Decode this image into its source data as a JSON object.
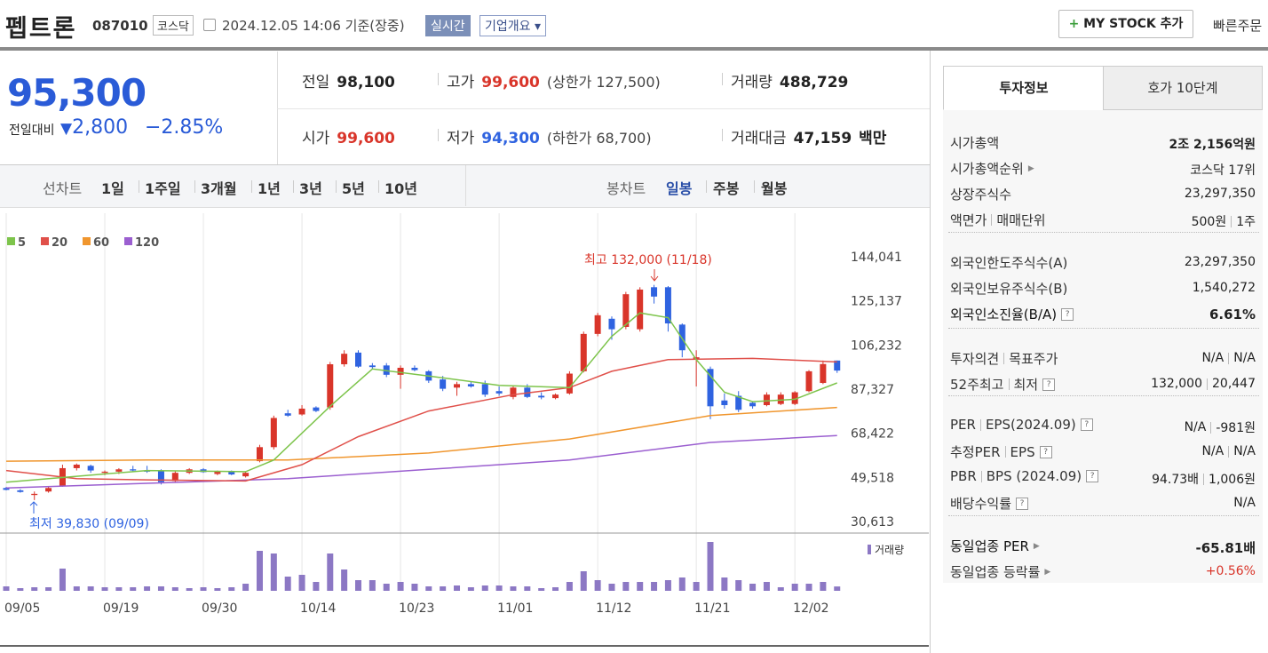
{
  "header": {
    "name": "펩트론",
    "code": "087010",
    "market": "코스닥",
    "datetime": "2024.12.05 14:06 기준(장중)",
    "realtime": "실시간",
    "company": "기업개요",
    "mystock": "MY STOCK 추가",
    "quick_order": "빠른주문"
  },
  "quote": {
    "price": "95,300",
    "change_label": "전일대비",
    "change": "2,800",
    "change_pct": "−2.85%",
    "rows": [
      [
        {
          "label": "전일",
          "value": "98,100"
        },
        {
          "label": "고가",
          "value": "99,600",
          "extra": "(상한가 127,500)"
        },
        {
          "label": "거래량",
          "value": "488,729"
        }
      ],
      [
        {
          "label": "시가",
          "value": "99,600"
        },
        {
          "label": "저가",
          "value": "94,300",
          "extra": "(하한가 68,700)"
        },
        {
          "label": "거래대금",
          "value": "47,159",
          "unit": "백만"
        }
      ]
    ]
  },
  "period_tabs": {
    "line_label": "선차트",
    "line": [
      "1일",
      "1주일",
      "3개월",
      "1년",
      "3년",
      "5년",
      "10년"
    ],
    "candle_label": "봉차트",
    "candle": [
      "일봉",
      "주봉",
      "월봉"
    ]
  },
  "invest": {
    "tabs": [
      "투자정보",
      "호가 10단계"
    ],
    "groups": [
      [
        {
          "label": [
            "시가총액"
          ],
          "value": [
            "2조 2,156억원"
          ]
        },
        {
          "label": [
            "시가총액순위"
          ],
          "arrow": true,
          "value": [
            "코스닥 17위"
          ]
        },
        {
          "label": [
            "상장주식수"
          ],
          "value": [
            "23,297,350"
          ]
        },
        {
          "label": [
            "액면가",
            "매매단위"
          ],
          "value": [
            "500원",
            "1주"
          ]
        }
      ],
      [
        {
          "label": [
            "외국인한도주식수(A)"
          ],
          "value": [
            "23,297,350"
          ]
        },
        {
          "label": [
            "외국인보유주식수(B)"
          ],
          "value": [
            "1,540,272"
          ]
        },
        {
          "label": [
            "외국인소진율(B/A)"
          ],
          "help": true,
          "value": [
            "6.61%"
          ],
          "strong": true
        }
      ],
      [
        {
          "label": [
            "투자의견",
            "목표주가"
          ],
          "value": [
            "N/A",
            "N/A"
          ]
        },
        {
          "label": [
            "52주최고",
            "최저"
          ],
          "help": true,
          "value": [
            "132,000",
            "20,447"
          ]
        }
      ],
      [
        {
          "label": [
            "PER",
            "EPS(2024.09)"
          ],
          "help": true,
          "value": [
            "N/A",
            "-981원"
          ]
        },
        {
          "label": [
            "추정PER",
            "EPS"
          ],
          "help": true,
          "value": [
            "N/A",
            "N/A"
          ]
        },
        {
          "label": [
            "PBR",
            "BPS (2024.09)"
          ],
          "help": true,
          "value": [
            "94.73배",
            "1,006원"
          ]
        },
        {
          "label": [
            "배당수익률"
          ],
          "help": true,
          "value": [
            "N/A"
          ]
        }
      ],
      [
        {
          "label": [
            "동일업종 PER"
          ],
          "arrow": true,
          "value": [
            "-65.81배"
          ],
          "strong": true
        },
        {
          "label": [
            "동일업종 등락률"
          ],
          "arrow": true,
          "value": [
            "+0.56%"
          ],
          "rise": true
        }
      ]
    ]
  },
  "chart_data": {
    "type": "candlestick",
    "categories": [
      "09/05",
      null,
      null,
      null,
      null,
      null,
      null,
      "09/19",
      null,
      null,
      null,
      null,
      null,
      null,
      "09/30",
      null,
      null,
      null,
      null,
      null,
      null,
      "10/14",
      null,
      null,
      null,
      null,
      null,
      null,
      "10/23",
      null,
      null,
      null,
      null,
      null,
      null,
      "11/01",
      null,
      null,
      null,
      null,
      null,
      null,
      "11/12",
      null,
      null,
      null,
      null,
      null,
      null,
      "11/21",
      null,
      null,
      null,
      null,
      null,
      null,
      "12/02",
      null,
      null,
      null
    ],
    "open": [
      45000,
      44000,
      42000,
      43500,
      46000,
      53500,
      54500,
      51500,
      52000,
      53000,
      52500,
      52500,
      48000,
      51500,
      53000,
      51000,
      52000,
      50000,
      56500,
      62500,
      77000,
      76500,
      79500,
      79500,
      98000,
      103000,
      97500,
      97500,
      93500,
      96500,
      95000,
      91500,
      88000,
      89500,
      89500,
      86500,
      84000,
      88000,
      84500,
      83500,
      85500,
      95000,
      111000,
      117500,
      114000,
      113000,
      131000,
      131000,
      115000,
      100000,
      96000,
      82500,
      84500,
      81500,
      80500,
      81000,
      81000,
      86500,
      90000,
      99600
    ],
    "high": [
      45500,
      44500,
      43500,
      45500,
      55000,
      55500,
      55000,
      52500,
      53500,
      54500,
      54500,
      53000,
      52500,
      53500,
      53500,
      52500,
      52500,
      52000,
      63500,
      76000,
      78500,
      80500,
      80000,
      99000,
      104000,
      104000,
      98500,
      98500,
      97500,
      97500,
      95500,
      93000,
      90500,
      90500,
      91000,
      88500,
      89000,
      89500,
      86000,
      85500,
      95000,
      112000,
      120000,
      118500,
      129000,
      131000,
      132000,
      131500,
      115500,
      104000,
      97000,
      85500,
      86500,
      82000,
      86000,
      86000,
      86500,
      95500,
      99600,
      99600
    ],
    "low": [
      44000,
      43000,
      39830,
      43000,
      45500,
      52500,
      51500,
      50500,
      51000,
      52000,
      51500,
      46500,
      47500,
      51000,
      51500,
      50500,
      50500,
      49500,
      56000,
      61500,
      75500,
      76000,
      77500,
      78500,
      97000,
      96500,
      96000,
      92500,
      87500,
      95000,
      90000,
      86500,
      84500,
      88000,
      84000,
      84500,
      83000,
      83500,
      83000,
      83000,
      85000,
      94500,
      110000,
      108500,
      113000,
      112000,
      124000,
      112000,
      101000,
      88500,
      74500,
      79000,
      77500,
      79000,
      80000,
      80500,
      80500,
      86000,
      89500,
      94300
    ],
    "close": [
      44200,
      43300,
      42500,
      45000,
      53500,
      55000,
      52500,
      52000,
      53000,
      52500,
      52000,
      47500,
      51500,
      53000,
      51800,
      52000,
      50800,
      51500,
      62500,
      75000,
      76000,
      79000,
      78000,
      98000,
      102500,
      97000,
      96800,
      93500,
      96500,
      95500,
      91000,
      87500,
      89500,
      88500,
      85000,
      85500,
      88000,
      84000,
      83800,
      85000,
      94000,
      111000,
      119000,
      113000,
      128000,
      130000,
      127000,
      115500,
      104000,
      101000,
      80000,
      80500,
      78500,
      80000,
      85000,
      85000,
      86000,
      95000,
      98100,
      95300
    ],
    "up_color": "#d9352a",
    "down_color": "#2f63e0",
    "ylim": [
      25700,
      162700
    ],
    "yticks": [
      {
        "value": 30613,
        "label": "30,613"
      },
      {
        "value": 49518,
        "label": "49,518"
      },
      {
        "value": 68422,
        "label": "68,422"
      },
      {
        "value": 87327,
        "label": "87,327"
      },
      {
        "value": 106232,
        "label": "106,232"
      },
      {
        "value": 125137,
        "label": "125,137"
      },
      {
        "value": 144041,
        "label": "144,041"
      }
    ],
    "grid": "x",
    "series": [
      {
        "name": "5",
        "color": "#7dc44b",
        "x": [
          0,
          5,
          10,
          17,
          19,
          23,
          26,
          30,
          35,
          40,
          43,
          45,
          47,
          49,
          51,
          53,
          56,
          59
        ],
        "values": [
          47500,
          50000,
          52500,
          52000,
          57000,
          80000,
          96000,
          93000,
          89000,
          88000,
          110000,
          120000,
          118000,
          100000,
          86000,
          82000,
          83000,
          90000
        ]
      },
      {
        "name": "20",
        "color": "#e0504a",
        "x": [
          0,
          5,
          10,
          17,
          21,
          25,
          30,
          36,
          40,
          43,
          47,
          53,
          59
        ],
        "values": [
          52500,
          49000,
          48500,
          48000,
          55000,
          67000,
          78000,
          85000,
          88000,
          95000,
          100000,
          100500,
          99000
        ]
      },
      {
        "name": "60",
        "color": "#f0962e",
        "x": [
          0,
          10,
          20,
          30,
          40,
          50,
          59
        ],
        "values": [
          56500,
          57000,
          57000,
          60000,
          66000,
          76000,
          79500
        ]
      },
      {
        "name": "120",
        "color": "#9b5fd0",
        "x": [
          0,
          10,
          20,
          30,
          40,
          50,
          59
        ],
        "values": [
          45000,
          47000,
          49000,
          53000,
          57000,
          64500,
          67500
        ]
      }
    ],
    "volume": {
      "label": "거래량",
      "color": "#8c78c4",
      "vlim": [
        0,
        6500000
      ],
      "values": [
        500000,
        300000,
        400000,
        400000,
        2500000,
        500000,
        500000,
        400000,
        400000,
        400000,
        500000,
        500000,
        400000,
        300000,
        400000,
        300000,
        400000,
        800000,
        4500000,
        4200000,
        1600000,
        1800000,
        1000000,
        4200000,
        2400000,
        1200000,
        1200000,
        800000,
        1000000,
        800000,
        500000,
        500000,
        600000,
        400000,
        600000,
        600000,
        500000,
        500000,
        300000,
        400000,
        1000000,
        2200000,
        1200000,
        800000,
        1000000,
        1000000,
        1000000,
        1200000,
        1500000,
        1000000,
        5500000,
        1500000,
        1200000,
        800000,
        1000000,
        400000,
        800000,
        800000,
        1000000,
        488729
      ]
    },
    "annotations": {
      "high": "최고 132,000 (11/18)",
      "low": "최저 39,830 (09/09)"
    }
  }
}
